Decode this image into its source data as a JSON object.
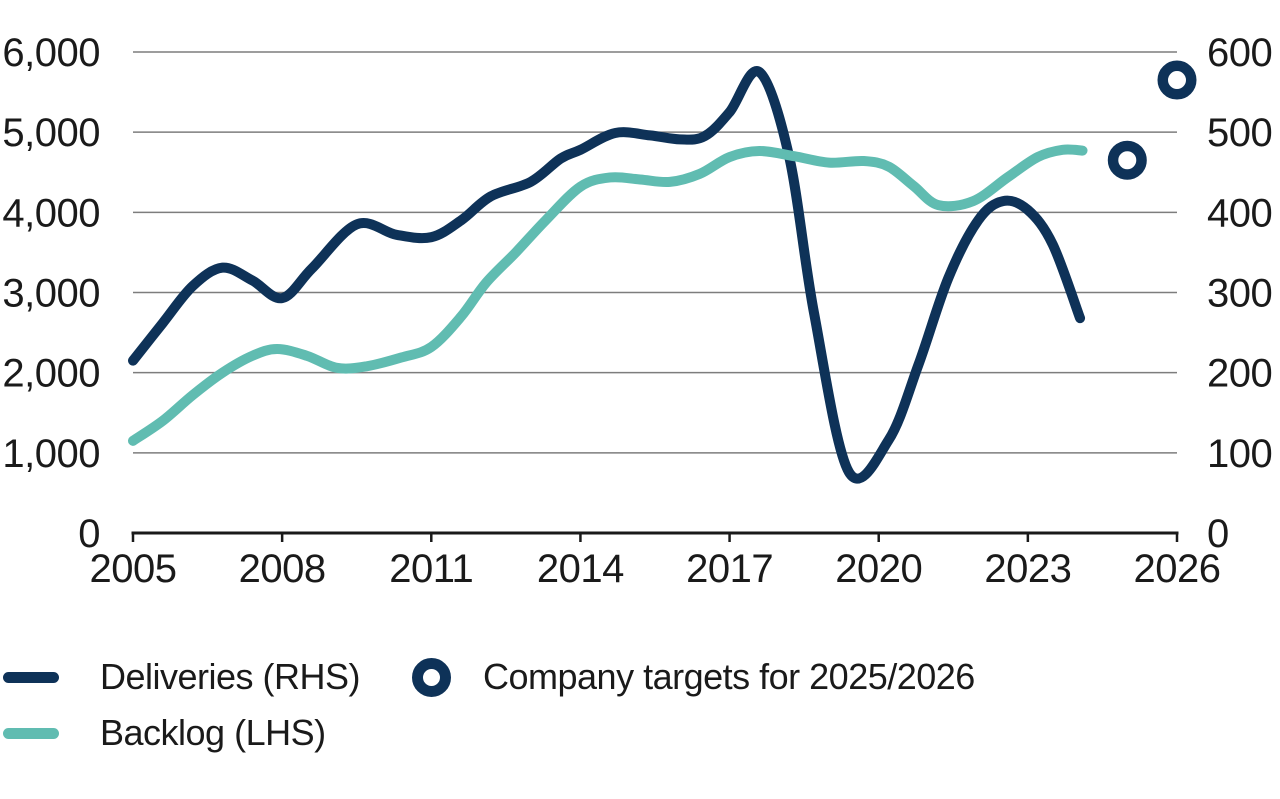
{
  "page": {
    "background": "#ffffff"
  },
  "chart_data": {
    "type": "line",
    "title": "",
    "grid": "horizontal",
    "x_axis": {
      "range": [
        2005,
        2026
      ],
      "ticks": [
        2005,
        2008,
        2011,
        2014,
        2017,
        2020,
        2023,
        2026
      ],
      "tick_labels": [
        "2005",
        "2008",
        "2011",
        "2014",
        "2017",
        "2020",
        "2023",
        "2026"
      ]
    },
    "y_axis_left": {
      "name": "Backlog (LHS)",
      "range": [
        0,
        6000
      ],
      "tick_values": [
        0,
        1000,
        2000,
        3000,
        4000,
        5000,
        6000
      ],
      "tick_labels": [
        "0",
        "1,000",
        "2,000",
        "3,000",
        "4,000",
        "5,000",
        "6,000"
      ]
    },
    "y_axis_right": {
      "name": "Deliveries (RHS)",
      "range": [
        0,
        600
      ],
      "tick_values": [
        0,
        100,
        200,
        300,
        400,
        500,
        600
      ],
      "tick_labels": [
        "0",
        "100",
        "200",
        "300",
        "400",
        "500",
        "600"
      ]
    },
    "series": [
      {
        "name": "Deliveries (RHS)",
        "axis": "right",
        "color": "#0e3258",
        "stroke_width": 10,
        "points": [
          [
            2005,
            215
          ],
          [
            2005.6,
            262
          ],
          [
            2006.2,
            308
          ],
          [
            2006.8,
            331
          ],
          [
            2007.4,
            315
          ],
          [
            2008,
            293
          ],
          [
            2008.6,
            330
          ],
          [
            2009.5,
            385
          ],
          [
            2010.3,
            372
          ],
          [
            2011,
            369
          ],
          [
            2011.6,
            390
          ],
          [
            2012.2,
            420
          ],
          [
            2013,
            438
          ],
          [
            2013.6,
            467
          ],
          [
            2014,
            478
          ],
          [
            2014.7,
            499
          ],
          [
            2015.4,
            496
          ],
          [
            2016,
            491
          ],
          [
            2016.5,
            495
          ],
          [
            2017,
            525
          ],
          [
            2017.6,
            575
          ],
          [
            2018.2,
            469
          ],
          [
            2018.7,
            274
          ],
          [
            2019.4,
            76
          ],
          [
            2020.2,
            116
          ],
          [
            2020.8,
            210
          ],
          [
            2021.4,
            318
          ],
          [
            2022,
            390
          ],
          [
            2022.5,
            414
          ],
          [
            2023,
            403
          ],
          [
            2023.5,
            360
          ],
          [
            2024.05,
            268
          ]
        ]
      },
      {
        "name": "Backlog (LHS)",
        "axis": "left",
        "color": "#60bcb1",
        "stroke_width": 10,
        "points": [
          [
            2005,
            1150
          ],
          [
            2005.6,
            1400
          ],
          [
            2006.2,
            1720
          ],
          [
            2006.8,
            2000
          ],
          [
            2007.4,
            2210
          ],
          [
            2007.9,
            2295
          ],
          [
            2008.5,
            2210
          ],
          [
            2009.1,
            2060
          ],
          [
            2009.7,
            2080
          ],
          [
            2010.4,
            2190
          ],
          [
            2011,
            2320
          ],
          [
            2011.6,
            2700
          ],
          [
            2012.1,
            3120
          ],
          [
            2012.7,
            3500
          ],
          [
            2013.3,
            3900
          ],
          [
            2014,
            4320
          ],
          [
            2014.6,
            4435
          ],
          [
            2015.2,
            4410
          ],
          [
            2015.8,
            4380
          ],
          [
            2016.4,
            4480
          ],
          [
            2017,
            4690
          ],
          [
            2017.6,
            4765
          ],
          [
            2018.3,
            4700
          ],
          [
            2019,
            4620
          ],
          [
            2019.7,
            4640
          ],
          [
            2020.2,
            4570
          ],
          [
            2020.7,
            4330
          ],
          [
            2021.2,
            4090
          ],
          [
            2021.9,
            4140
          ],
          [
            2022.6,
            4440
          ],
          [
            2023.2,
            4690
          ],
          [
            2023.7,
            4780
          ],
          [
            2024.1,
            4770
          ]
        ]
      }
    ],
    "targets": {
      "name": "Company targets for 2025/2026",
      "axis": "right",
      "color": "#0e3258",
      "points": [
        [
          2025,
          465
        ],
        [
          2026,
          565
        ]
      ]
    }
  },
  "legend": {
    "deliveries_label": "Deliveries (RHS)",
    "backlog_label": "Backlog (LHS)",
    "targets_label": "Company targets for 2025/2026"
  },
  "colors": {
    "navy": "#0e3258",
    "teal": "#60bcb1",
    "grid": "#7d7d7d",
    "axis": "#1a1a1a",
    "text": "#1a1a1a"
  }
}
